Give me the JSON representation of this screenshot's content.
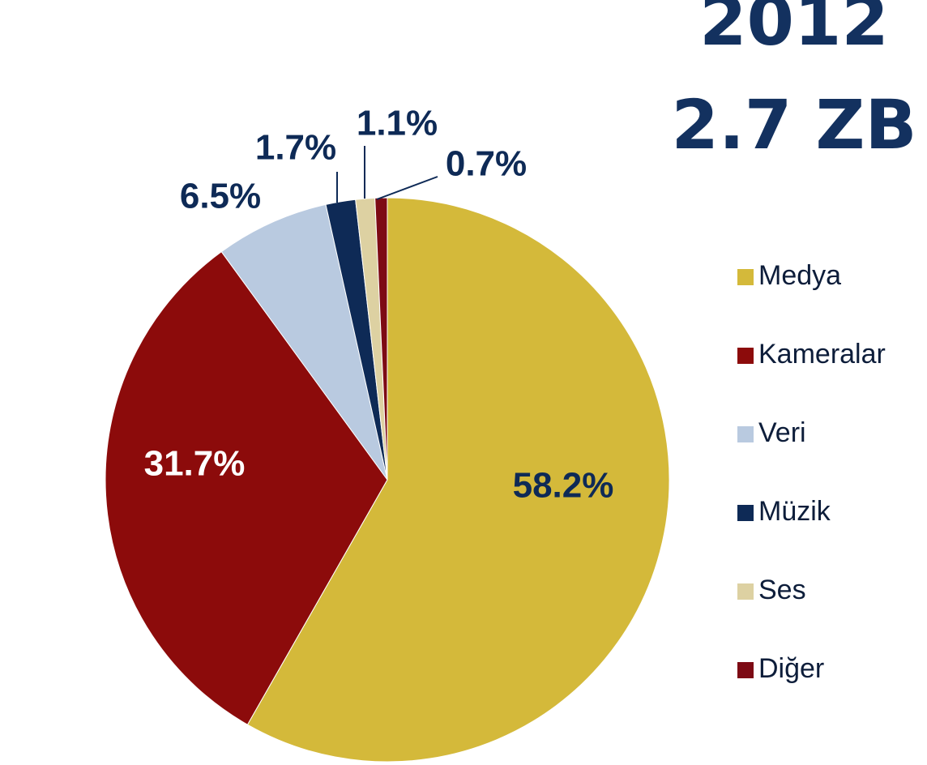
{
  "chart_data": {
    "type": "pie",
    "title": "2012",
    "subtitle": "2.7 ZB",
    "categories": [
      "Medya",
      "Kameralar",
      "Veri",
      "Müzik",
      "Ses",
      "Diğer"
    ],
    "values": [
      58.2,
      31.7,
      6.5,
      1.7,
      1.1,
      0.7
    ],
    "value_labels": [
      "58.2%",
      "31.7%",
      "6.5%",
      "1.7%",
      "1.1%",
      "0.7%"
    ],
    "colors": [
      "#d4b93a",
      "#8c0b0b",
      "#b9cae0",
      "#0e2a56",
      "#ddd1a2",
      "#7d0a14"
    ],
    "legend": "right"
  }
}
